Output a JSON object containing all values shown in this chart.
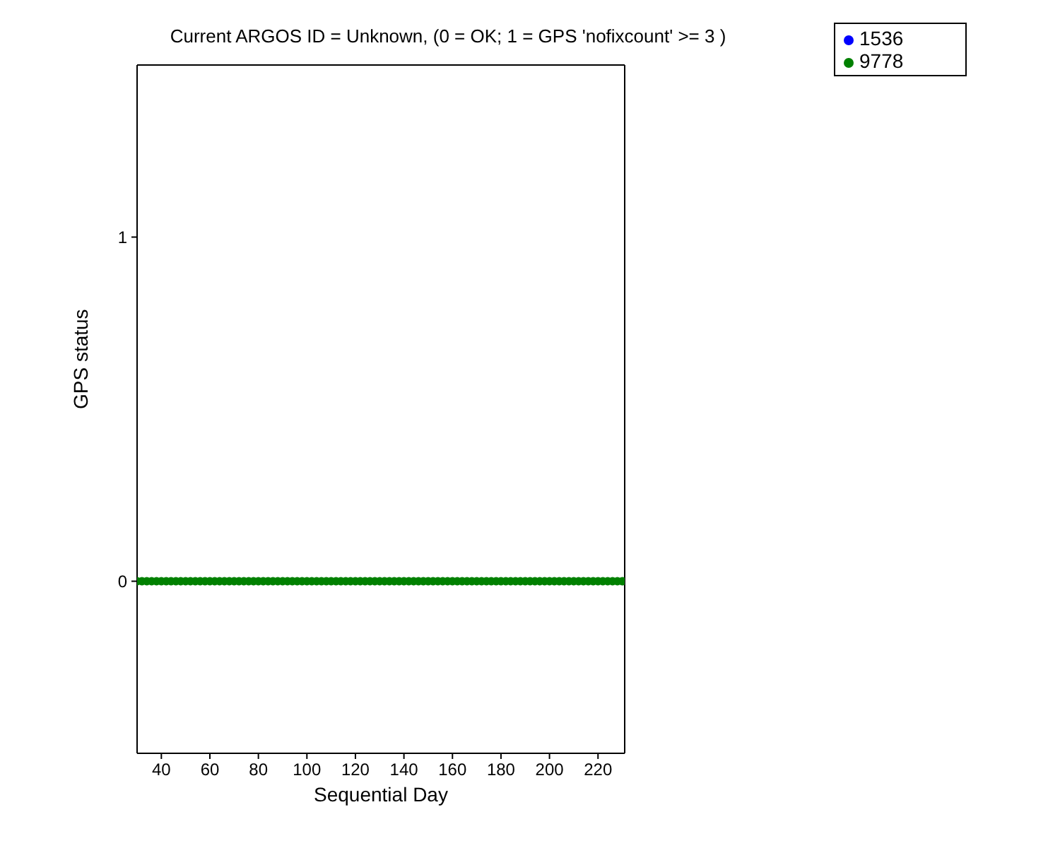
{
  "chart_data": {
    "type": "scatter",
    "title": "Current ARGOS ID = Unknown, (0 = OK; 1 = GPS 'nofixcount' >= 3 )",
    "xlabel": "Sequential Day",
    "ylabel": "GPS status",
    "xlim": [
      30,
      231
    ],
    "xticks": [
      40,
      60,
      80,
      100,
      120,
      140,
      160,
      180,
      200,
      220
    ],
    "ylim": [
      -0.5,
      1.5
    ],
    "yticks": [
      0,
      1
    ],
    "marker": "circle",
    "legend": "top right",
    "x": [
      30,
      32,
      34,
      36,
      38,
      40,
      42,
      44,
      46,
      48,
      50,
      52,
      54,
      56,
      58,
      60,
      62,
      64,
      66,
      68,
      70,
      72,
      74,
      76,
      78,
      80,
      82,
      84,
      86,
      88,
      90,
      92,
      94,
      96,
      98,
      100,
      102,
      104,
      106,
      108,
      110,
      112,
      114,
      116,
      118,
      120,
      122,
      124,
      126,
      128,
      130,
      132,
      134,
      136,
      138,
      140,
      142,
      144,
      146,
      148,
      150,
      152,
      154,
      156,
      158,
      160,
      162,
      164,
      166,
      168,
      170,
      172,
      174,
      176,
      178,
      180,
      182,
      184,
      186,
      188,
      190,
      192,
      194,
      196,
      198,
      200,
      202,
      204,
      206,
      208,
      210,
      212,
      214,
      216,
      218,
      220,
      222,
      224,
      226,
      228,
      230
    ],
    "series": [
      {
        "name": "1536",
        "color": "#0000ff",
        "values": [
          null,
          null,
          null,
          null,
          null,
          null,
          null,
          null,
          null,
          null,
          null,
          null,
          null,
          null,
          null,
          null,
          null,
          null,
          null,
          null,
          null,
          null,
          null,
          null,
          null,
          null,
          null,
          null,
          null,
          null,
          null,
          null,
          null,
          null,
          null,
          null,
          null,
          null,
          null,
          null,
          null,
          null,
          null,
          null,
          null,
          null,
          null,
          null,
          null,
          null,
          null,
          null,
          null,
          null,
          null,
          null,
          null,
          null,
          null,
          null,
          null,
          null,
          null,
          null,
          null,
          null,
          null,
          null,
          null,
          null,
          null,
          null,
          null,
          null,
          null,
          null,
          null,
          null,
          null,
          null,
          null,
          null,
          null,
          null,
          null,
          null,
          null,
          null,
          null,
          null,
          null,
          null,
          null,
          null,
          null,
          null,
          null,
          null,
          null,
          null,
          null
        ]
      },
      {
        "name": "9778",
        "color": "#008000",
        "values": [
          0,
          0,
          0,
          0,
          0,
          0,
          0,
          0,
          0,
          0,
          0,
          0,
          0,
          0,
          0,
          0,
          0,
          0,
          0,
          0,
          0,
          0,
          0,
          0,
          0,
          0,
          0,
          0,
          0,
          0,
          0,
          0,
          0,
          0,
          0,
          0,
          0,
          0,
          0,
          0,
          0,
          0,
          0,
          0,
          0,
          0,
          0,
          0,
          0,
          0,
          0,
          0,
          0,
          0,
          0,
          0,
          0,
          0,
          0,
          0,
          0,
          0,
          0,
          0,
          0,
          0,
          0,
          0,
          0,
          0,
          0,
          0,
          0,
          0,
          0,
          0,
          0,
          0,
          0,
          0,
          0,
          0,
          0,
          0,
          0,
          0,
          0,
          0,
          0,
          0,
          0,
          0,
          0,
          0,
          0,
          0,
          0,
          0,
          0,
          0,
          0
        ]
      }
    ]
  }
}
